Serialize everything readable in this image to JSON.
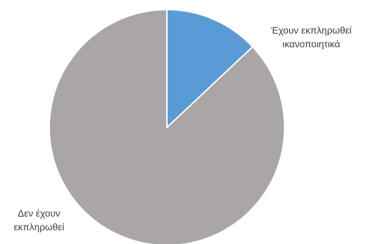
{
  "chart_data": {
    "type": "pie",
    "title": "",
    "start_angle_deg": 0,
    "direction": "clockwise",
    "slices": [
      {
        "label_lines": [
          "Έχουν εκπληρωθεί",
          "ικανοποιητικά"
        ],
        "value": 13,
        "color": "#5b9bd5"
      },
      {
        "label_lines": [
          "Δεν έχουν",
          "εκπληρωθεί"
        ],
        "value": 87,
        "color": "#aaa6a6"
      }
    ]
  }
}
